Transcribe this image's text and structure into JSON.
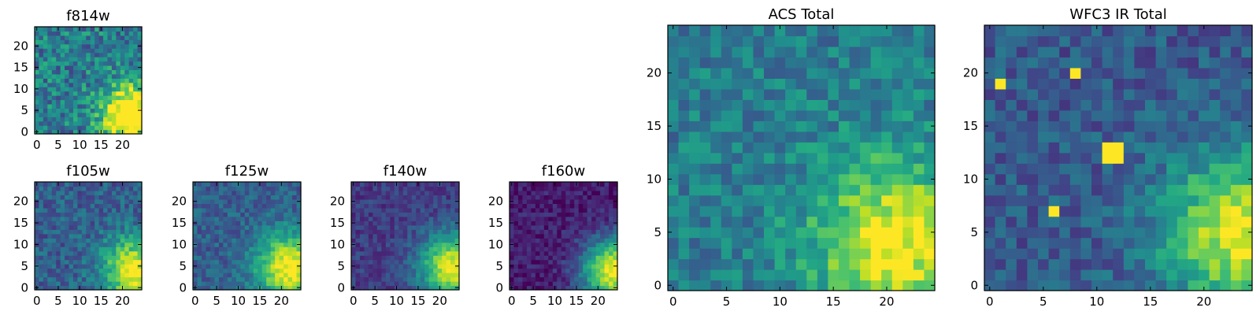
{
  "chart_data": [
    {
      "type": "heatmap",
      "title": "f814w",
      "grid": false,
      "xticks": [
        0,
        5,
        10,
        15,
        20
      ],
      "yticks": [
        0,
        5,
        10,
        15,
        20
      ],
      "xlim": [
        -0.5,
        24.5
      ],
      "ylim": [
        -0.5,
        24.5
      ],
      "n": 25,
      "bright_center": [
        22,
        4
      ],
      "bright_radius": 7,
      "background": 0.42,
      "noise": 0.22,
      "peak": 0.85,
      "seed": 11
    },
    {
      "type": "heatmap",
      "title": "f105w",
      "grid": false,
      "xticks": [
        0,
        5,
        10,
        15,
        20
      ],
      "yticks": [
        0,
        5,
        10,
        15,
        20
      ],
      "xlim": [
        -0.5,
        24.5
      ],
      "ylim": [
        -0.5,
        24.5
      ],
      "n": 25,
      "bright_center": [
        23,
        4
      ],
      "bright_radius": 8,
      "background": 0.3,
      "noise": 0.14,
      "peak": 0.7,
      "seed": 23
    },
    {
      "type": "heatmap",
      "title": "f125w",
      "grid": false,
      "xticks": [
        0,
        5,
        10,
        15,
        20
      ],
      "yticks": [
        0,
        5,
        10,
        15,
        20
      ],
      "xlim": [
        -0.5,
        24.5
      ],
      "ylim": [
        -0.5,
        24.5
      ],
      "n": 25,
      "bright_center": [
        22,
        5
      ],
      "bright_radius": 8,
      "background": 0.3,
      "noise": 0.12,
      "peak": 0.72,
      "seed": 37
    },
    {
      "type": "heatmap",
      "title": "f140w",
      "grid": false,
      "xticks": [
        0,
        5,
        10,
        15,
        20
      ],
      "yticks": [
        0,
        5,
        10,
        15,
        20
      ],
      "xlim": [
        -0.5,
        24.5
      ],
      "ylim": [
        -0.5,
        24.5
      ],
      "n": 25,
      "bright_center": [
        23,
        5
      ],
      "bright_radius": 8,
      "background": 0.18,
      "noise": 0.1,
      "peak": 0.8,
      "seed": 41
    },
    {
      "type": "heatmap",
      "title": "f160w",
      "grid": false,
      "xticks": [
        0,
        5,
        10,
        15,
        20
      ],
      "yticks": [
        0,
        5,
        10,
        15,
        20
      ],
      "xlim": [
        -0.5,
        24.5
      ],
      "ylim": [
        -0.5,
        24.5
      ],
      "n": 25,
      "bright_center": [
        24,
        4
      ],
      "bright_radius": 8,
      "background": 0.08,
      "noise": 0.1,
      "peak": 0.92,
      "seed": 53
    },
    {
      "type": "heatmap",
      "title": "ACS Total",
      "grid": false,
      "xticks": [
        0,
        5,
        10,
        15,
        20
      ],
      "yticks": [
        0,
        5,
        10,
        15,
        20
      ],
      "xlim": [
        -0.5,
        24.5
      ],
      "ylim": [
        -0.5,
        24.5
      ],
      "n": 25,
      "bright_center": [
        21,
        4
      ],
      "bright_radius": 8,
      "background": 0.42,
      "noise": 0.15,
      "peak": 0.58,
      "seed": 67
    },
    {
      "type": "heatmap",
      "title": "WFC3 IR Total",
      "grid": false,
      "xticks": [
        0,
        5,
        10,
        15,
        20
      ],
      "yticks": [
        0,
        5,
        10,
        15,
        20
      ],
      "xlim": [
        -0.5,
        24.5
      ],
      "ylim": [
        -0.5,
        24.5
      ],
      "n": 25,
      "bright_center": [
        24,
        5
      ],
      "bright_radius": 8,
      "background": 0.28,
      "noise": 0.13,
      "peak": 0.7,
      "seed": 79,
      "hotspots": [
        [
          11,
          12,
          2
        ],
        [
          8,
          20,
          1
        ],
        [
          1,
          19,
          1
        ],
        [
          6,
          7,
          1
        ],
        [
          22,
          5,
          1
        ]
      ]
    }
  ]
}
